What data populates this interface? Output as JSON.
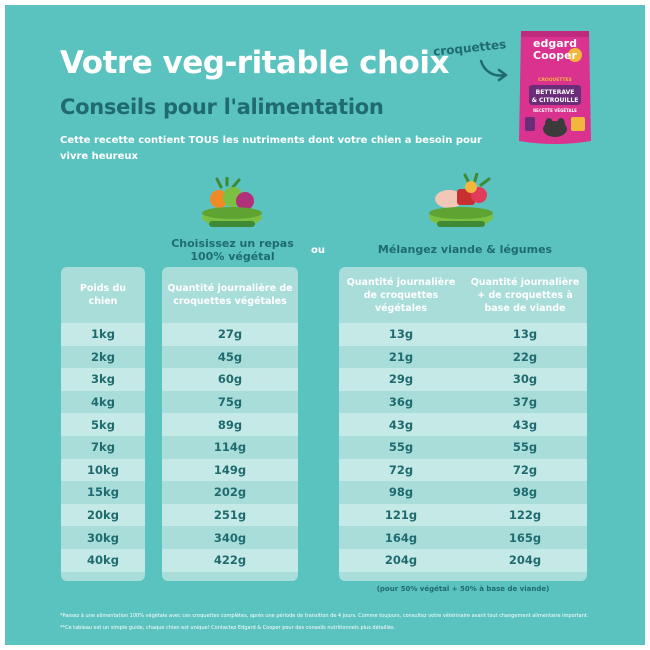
{
  "header": {
    "title": "Votre veg-ritable choix",
    "subtitle": "Conseils pour l'alimentation",
    "intro": "Cette recette contient TOUS les nutriments dont votre chien a besoin pour vivre heureux"
  },
  "product": {
    "callout": "croquettes",
    "brand_line1": "edgard",
    "brand_line2": "Cooper",
    "badge": "CROQUETTES",
    "recipe_line1": "BETTERAVE",
    "recipe_line2": "& CITROUILLE",
    "tagline": "RECETTE VÉGÉTALE",
    "colors": {
      "bag": "#d9338f",
      "band": "#6b2c7a",
      "accent": "#f2b63c"
    }
  },
  "options": {
    "veg_title": "Choisissez un repas 100% végétal",
    "separator": "ou",
    "mix_title": "Mélangez viande & légumes"
  },
  "table": {
    "weight_header": "Poids du chien",
    "veg_header": "Quantité journalière de croquettes végétales",
    "mix_veg_header": "Quantité journalière de croquettes végétales",
    "mix_meat_header": "Quantité journalière + de croquettes à base de viande",
    "weights": [
      "1kg",
      "2kg",
      "3kg",
      "4kg",
      "5kg",
      "7kg",
      "10kg",
      "15kg",
      "20kg",
      "30kg",
      "40kg"
    ],
    "veg_only": [
      "27g",
      "45g",
      "60g",
      "75g",
      "89g",
      "114g",
      "149g",
      "202g",
      "251g",
      "340g",
      "422g"
    ],
    "mix_veg": [
      "13g",
      "21g",
      "29g",
      "36g",
      "43g",
      "55g",
      "72g",
      "98g",
      "121g",
      "164g",
      "204g"
    ],
    "mix_meat": [
      "13g",
      "22g",
      "30g",
      "37g",
      "43g",
      "55g",
      "72g",
      "98g",
      "122g",
      "165g",
      "204g"
    ],
    "mix_note": "(pour 50% végétal + 50% à base de viande)"
  },
  "footnotes": {
    "note1": "*Passez à une alimentation 100% végétale avec ces croquettes complètes, après une période de transition de 4 jours. Comme toujours, consultez votre vétérinaire avant tout changement alimentaire important.",
    "note2": "**Ce tableau est un simple guide, chaque chien est unique! Contactez Edgard & Cooper pour des conseils nutritionnels plus détaillés."
  },
  "colors": {
    "background": "#5bc3bf",
    "dark_teal": "#1f6b6f",
    "card": "#a8ddda",
    "card_stripe": "#c5e9e6",
    "bowl": "#7bc043"
  }
}
